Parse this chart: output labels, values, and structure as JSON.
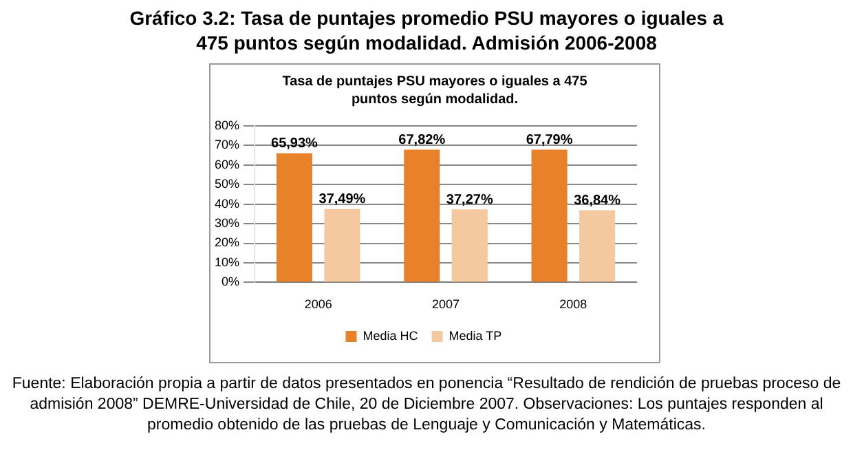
{
  "chart_data": {
    "type": "bar",
    "title": "Gráfico 3.2: Tasa de puntajes promedio  PSU mayores o iguales a 475 puntos según modalidad. Admisión 2006-2008",
    "subtitle": "Tasa de puntajes  PSU mayores o iguales a 475 puntos según modalidad.",
    "annotations": [
      "Fuente: Elaboración propia a partir de datos presentados en ponencia “Resultado de rendición de pruebas proceso de admisión 2008” DEMRE-Universidad de Chile, 20 de Diciembre 2007. Observaciones: Los puntajes responden al promedio obtenido de las pruebas de Lenguaje y Comunicación y Matemáticas."
    ],
    "categories": [
      "2006",
      "2007",
      "2008"
    ],
    "series": [
      {
        "name": "Media HC",
        "color": "#e8822a",
        "values": [
          65.93,
          67.82,
          67.79
        ],
        "value_labels": [
          "65,93%",
          "67,82%",
          "67,79%"
        ]
      },
      {
        "name": "Media TP",
        "color": "#f5c9a0",
        "values": [
          37.49,
          37.27,
          36.84
        ],
        "value_labels": [
          "37,49%",
          "37,27%",
          "36,84%"
        ]
      }
    ],
    "ylim": [
      0,
      80
    ],
    "yticks": [
      {
        "value": 0,
        "label": "0%"
      },
      {
        "value": 10,
        "label": "10%"
      },
      {
        "value": 20,
        "label": "20%"
      },
      {
        "value": 30,
        "label": "30%"
      },
      {
        "value": 40,
        "label": "40%"
      },
      {
        "value": 50,
        "label": "50%"
      },
      {
        "value": 60,
        "label": "60%"
      },
      {
        "value": 70,
        "label": "70%"
      },
      {
        "value": 80,
        "label": "80%"
      }
    ],
    "grid": "y",
    "legend": "bottom"
  }
}
